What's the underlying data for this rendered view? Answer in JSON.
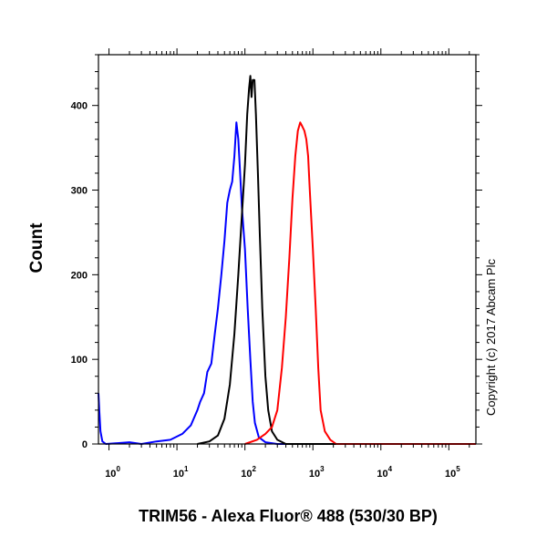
{
  "chart_data": {
    "type": "line",
    "title": "",
    "xlabel": "TRIM56 - Alexa Fluor® 488 (530/30 BP)",
    "ylabel": "Count",
    "x_scale": "log",
    "xlim": [
      0.7,
      250000
    ],
    "ylim": [
      0,
      460
    ],
    "x_ticks": [
      {
        "value": 1,
        "base": "10",
        "exp": "0"
      },
      {
        "value": 10,
        "base": "10",
        "exp": "1"
      },
      {
        "value": 100,
        "base": "10",
        "exp": "2"
      },
      {
        "value": 1000,
        "base": "10",
        "exp": "3"
      },
      {
        "value": 10000,
        "base": "10",
        "exp": "4"
      },
      {
        "value": 100000,
        "base": "10",
        "exp": "5"
      }
    ],
    "y_ticks": [
      {
        "value": 0,
        "label": "0"
      },
      {
        "value": 100,
        "label": "100"
      },
      {
        "value": 200,
        "label": "200"
      },
      {
        "value": 300,
        "label": "300"
      },
      {
        "value": 400,
        "label": "400"
      }
    ],
    "grid": false,
    "legend": "none",
    "series": [
      {
        "color": "#0000ff",
        "points": [
          [
            0.7,
            60
          ],
          [
            0.72,
            40
          ],
          [
            0.75,
            15
          ],
          [
            0.8,
            3
          ],
          [
            0.9,
            0
          ],
          [
            2,
            2
          ],
          [
            3,
            0
          ],
          [
            5,
            3
          ],
          [
            8,
            5
          ],
          [
            12,
            12
          ],
          [
            16,
            22
          ],
          [
            20,
            40
          ],
          [
            22,
            50
          ],
          [
            25,
            60
          ],
          [
            28,
            85
          ],
          [
            32,
            95
          ],
          [
            36,
            130
          ],
          [
            40,
            160
          ],
          [
            45,
            200
          ],
          [
            50,
            240
          ],
          [
            55,
            285
          ],
          [
            60,
            300
          ],
          [
            65,
            310
          ],
          [
            70,
            340
          ],
          [
            75,
            380
          ],
          [
            80,
            360
          ],
          [
            85,
            320
          ],
          [
            90,
            280
          ],
          [
            100,
            230
          ],
          [
            110,
            160
          ],
          [
            120,
            100
          ],
          [
            130,
            50
          ],
          [
            140,
            25
          ],
          [
            160,
            8
          ],
          [
            200,
            2
          ],
          [
            300,
            0
          ],
          [
            250000,
            0
          ]
        ]
      },
      {
        "color": "#000000",
        "points": [
          [
            20,
            0
          ],
          [
            30,
            3
          ],
          [
            40,
            10
          ],
          [
            50,
            30
          ],
          [
            60,
            70
          ],
          [
            70,
            130
          ],
          [
            80,
            200
          ],
          [
            90,
            270
          ],
          [
            100,
            330
          ],
          [
            108,
            390
          ],
          [
            115,
            420
          ],
          [
            120,
            435
          ],
          [
            125,
            410
          ],
          [
            130,
            430
          ],
          [
            138,
            430
          ],
          [
            145,
            390
          ],
          [
            155,
            320
          ],
          [
            165,
            250
          ],
          [
            180,
            160
          ],
          [
            200,
            80
          ],
          [
            220,
            40
          ],
          [
            250,
            15
          ],
          [
            300,
            5
          ],
          [
            400,
            0
          ],
          [
            250000,
            0
          ]
        ]
      },
      {
        "color": "#ff0000",
        "points": [
          [
            100,
            0
          ],
          [
            150,
            5
          ],
          [
            200,
            12
          ],
          [
            250,
            20
          ],
          [
            300,
            40
          ],
          [
            350,
            90
          ],
          [
            400,
            150
          ],
          [
            450,
            220
          ],
          [
            500,
            290
          ],
          [
            550,
            340
          ],
          [
            600,
            370
          ],
          [
            650,
            380
          ],
          [
            700,
            375
          ],
          [
            750,
            370
          ],
          [
            800,
            360
          ],
          [
            850,
            340
          ],
          [
            900,
            300
          ],
          [
            1000,
            230
          ],
          [
            1100,
            160
          ],
          [
            1200,
            90
          ],
          [
            1300,
            40
          ],
          [
            1500,
            15
          ],
          [
            1800,
            5
          ],
          [
            2200,
            0
          ],
          [
            250000,
            0
          ]
        ]
      }
    ]
  },
  "copyright": "Copyright (c) 2017 Abcam Plc"
}
